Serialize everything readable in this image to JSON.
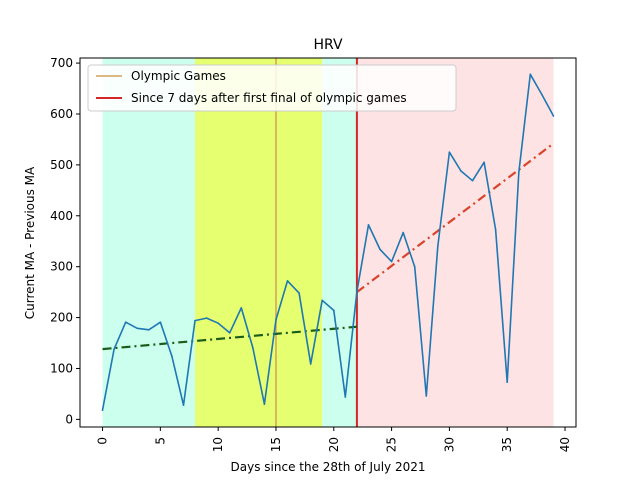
{
  "chart_data": {
    "type": "line",
    "title": "HRV",
    "xlabel": "Days since the 28th of July 2021",
    "ylabel": "Current MA - Previous MA",
    "xlim": [
      -1.95,
      40.95
    ],
    "ylim": [
      -15,
      710
    ],
    "xticks": [
      0,
      5,
      10,
      15,
      20,
      25,
      30,
      35,
      40
    ],
    "yticks": [
      0,
      100,
      200,
      300,
      400,
      500,
      600,
      700
    ],
    "grid": false,
    "legend_position": "top-left",
    "colors": {
      "series": "#1f77b4",
      "trend_before": "#1a5c1a",
      "trend_after": "#d9432a",
      "olympic_line": "#d4a05a",
      "since_line": "#d62728",
      "span_cyan": "#ccffee",
      "span_yellow": "#e6ff70",
      "span_pink": "#fde3e3"
    },
    "shaded_regions": [
      {
        "x0": 0,
        "x1": 8,
        "color": "#ccffee"
      },
      {
        "x0": 8,
        "x1": 19,
        "color": "#e6ff70"
      },
      {
        "x0": 19,
        "x1": 22,
        "color": "#ccffee"
      },
      {
        "x0": 22,
        "x1": 39,
        "color": "#fde3e3"
      }
    ],
    "vertical_lines": [
      {
        "x": 15,
        "label": "Olympic Games",
        "color": "#d4a05a"
      },
      {
        "x": 22,
        "label": "Since 7 days after first final of olympic games",
        "color": "#d62728"
      }
    ],
    "trend_lines": [
      {
        "x": [
          0,
          22
        ],
        "y": [
          138,
          182
        ],
        "color": "#1a5c1a"
      },
      {
        "x": [
          22,
          39
        ],
        "y": [
          250,
          542
        ],
        "color": "#d9432a"
      }
    ],
    "series": [
      {
        "x": [
          0,
          1,
          2,
          3,
          4,
          5,
          6,
          7,
          8,
          9,
          10,
          11,
          12,
          13,
          14,
          15,
          16,
          17,
          18,
          19,
          20,
          21,
          22,
          23,
          24,
          25,
          26,
          27,
          28,
          29,
          30,
          31,
          32,
          33,
          34,
          35,
          36,
          37,
          38,
          39
        ],
        "values": [
          18,
          138,
          191,
          179,
          176,
          191,
          124,
          28,
          194,
          199,
          189,
          170,
          219,
          141,
          30,
          196,
          272,
          248,
          109,
          234,
          214,
          44,
          251,
          382,
          334,
          310,
          367,
          300,
          46,
          340,
          525,
          488,
          469,
          505,
          373,
          73,
          485,
          678,
          638,
          596
        ]
      }
    ]
  }
}
